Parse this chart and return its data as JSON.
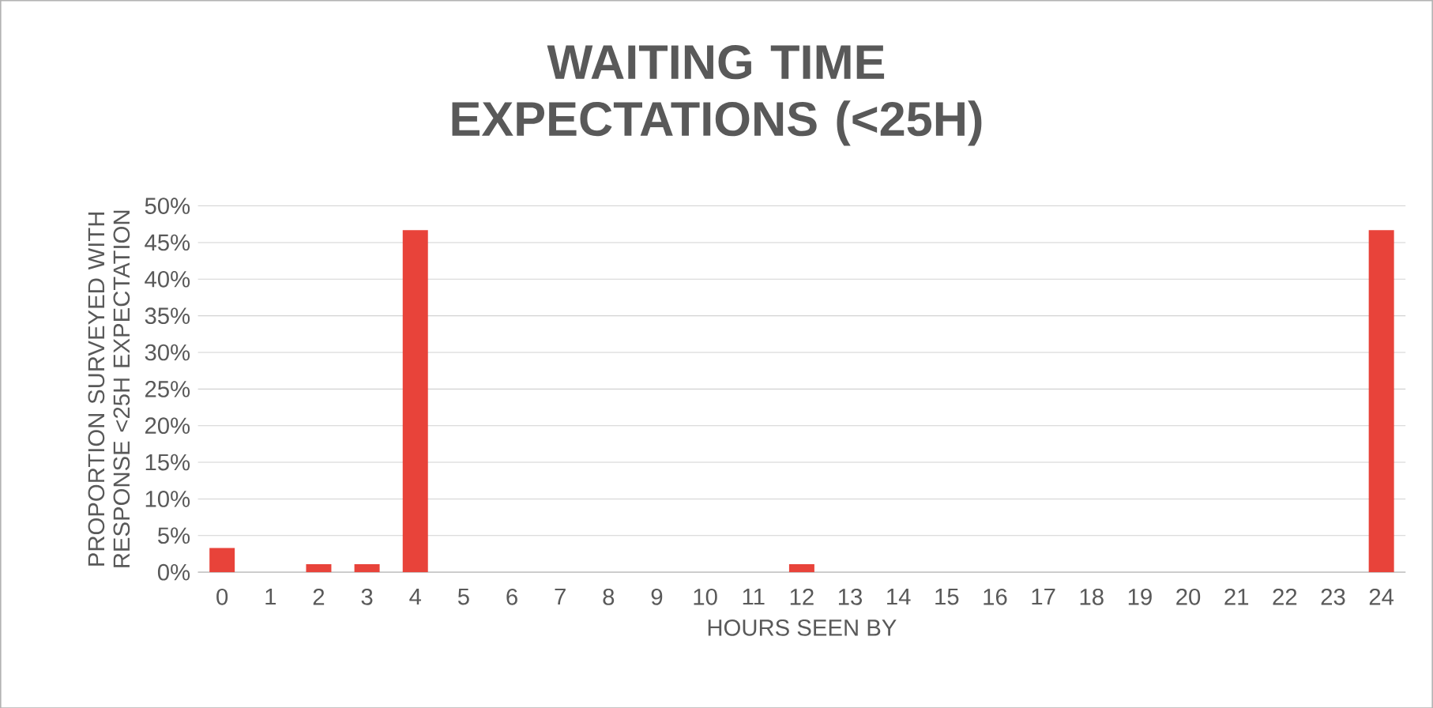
{
  "chart_data": {
    "type": "bar",
    "title": "WAITING TIME EXPECTATIONS (<25H)",
    "xlabel": "HOURS SEEN BY",
    "ylabel": "PROPORTION SURVEYED WITH RESPONSE <25H EXPECTATION",
    "categories": [
      "0",
      "1",
      "2",
      "3",
      "4",
      "5",
      "6",
      "7",
      "8",
      "9",
      "10",
      "11",
      "12",
      "13",
      "14",
      "15",
      "16",
      "17",
      "18",
      "19",
      "20",
      "21",
      "22",
      "23",
      "24"
    ],
    "values": [
      3.3,
      0,
      1.1,
      1.1,
      46.7,
      0,
      0,
      0,
      0,
      0,
      0,
      0,
      1.1,
      0,
      0,
      0,
      0,
      0,
      0,
      0,
      0,
      0,
      0,
      0,
      46.7
    ],
    "color": "#e8433a",
    "ylim": [
      0,
      50
    ],
    "yticks": [
      {
        "value": 0,
        "label": "0%"
      },
      {
        "value": 5,
        "label": "5%"
      },
      {
        "value": 10,
        "label": "10%"
      },
      {
        "value": 15,
        "label": "15%"
      },
      {
        "value": 20,
        "label": "20%"
      },
      {
        "value": 25,
        "label": "25%"
      },
      {
        "value": 30,
        "label": "30%"
      },
      {
        "value": 35,
        "label": "35%"
      },
      {
        "value": 40,
        "label": "40%"
      },
      {
        "value": 45,
        "label": "45%"
      },
      {
        "value": 50,
        "label": "50%"
      }
    ],
    "grid": "y"
  }
}
